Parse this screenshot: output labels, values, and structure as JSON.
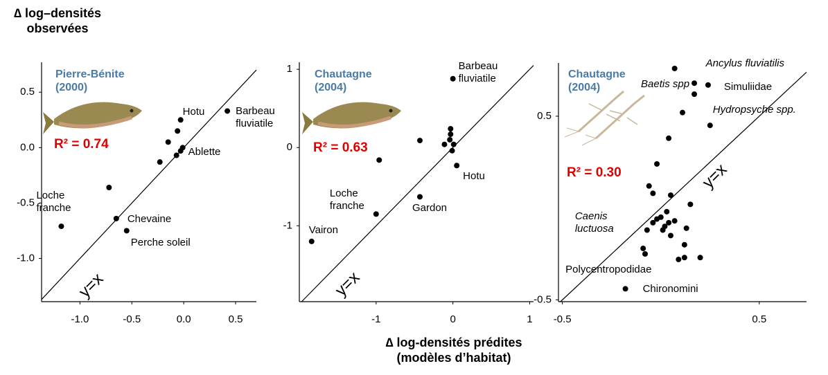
{
  "figure": {
    "ylabel": "∆ log–densités\nobservées",
    "xlabel": "∆ log-densités prédites\n(modèles d’habitat)"
  },
  "chart_data": [
    {
      "type": "scatter",
      "title": "Pierre-Bénite\n(2000)",
      "annotation": "R² = 0.74",
      "reference_line_label": "y=x",
      "color": "#000000",
      "x": [
        0.42,
        -0.03,
        -0.06,
        -0.15,
        -0.01,
        -0.03,
        -0.07,
        -0.23,
        -0.72,
        -0.65,
        -0.55,
        -1.18
      ],
      "y": [
        0.33,
        0.25,
        0.15,
        0.05,
        0.0,
        -0.03,
        -0.07,
        -0.13,
        -0.36,
        -0.64,
        -0.75,
        -0.71
      ],
      "labels": [
        "Barbeau\nfluviatile",
        "Hotu",
        null,
        null,
        null,
        null,
        "Ablette",
        null,
        null,
        "Chevaine",
        "Perche soleil",
        "Loche\nfranche"
      ],
      "xlim": [
        -1.37,
        0.7
      ],
      "ylim": [
        -1.39,
        0.77
      ],
      "xticks": [
        {
          "value": -1,
          "label": "-1.0"
        },
        -0.5,
        {
          "value": 0,
          "label": "0.0"
        },
        0.5
      ],
      "yticks": [
        0.5,
        {
          "value": 0,
          "label": "0.0"
        },
        -0.5,
        {
          "value": -1,
          "label": "-1.0"
        }
      ]
    },
    {
      "type": "scatter",
      "title": "Chautagne\n(2004)",
      "annotation": "R² = 0.63",
      "reference_line_label": "y=x",
      "color": "#000000",
      "x": [
        0.0,
        -0.03,
        -0.03,
        -0.04,
        -0.11,
        0.01,
        -0.01,
        -0.43,
        -0.96,
        0.05,
        -0.43,
        -1.0,
        -1.84
      ],
      "y": [
        0.88,
        0.24,
        0.17,
        0.1,
        0.04,
        0.04,
        -0.04,
        0.09,
        -0.16,
        -0.23,
        -0.63,
        -0.85,
        -1.2
      ],
      "labels": [
        "Barbeau\nfluviatile",
        null,
        null,
        null,
        null,
        null,
        null,
        null,
        null,
        "Hotu",
        "Gardon",
        "Loche\nfranche",
        "Vairon"
      ],
      "xlim": [
        -2,
        1.05
      ],
      "ylim": [
        -1.97,
        1.09
      ],
      "xticks": [
        -1,
        0,
        1
      ],
      "yticks": [
        1,
        0,
        -1
      ]
    },
    {
      "type": "scatter",
      "title": "Chautagne\n(2004)",
      "annotation": "R² = 0.30",
      "reference_line_label": "y=x",
      "color": "#000000",
      "x": [
        0.07,
        0.24,
        0.17,
        0.17,
        0.11,
        0.25,
        0.04,
        -0.02,
        -0.06,
        -0.04,
        0.05,
        0.15,
        0.03,
        0.0,
        -0.02,
        -0.04,
        0.04,
        0.07,
        -0.07,
        0.01,
        0.02,
        0.13,
        0.05,
        -0.09,
        -0.08,
        0.12,
        0.09,
        0.12,
        0.2,
        -0.18
      ],
      "y": [
        0.76,
        0.67,
        0.68,
        0.62,
        0.52,
        0.45,
        0.38,
        0.24,
        0.12,
        0.08,
        0.07,
        0.02,
        -0.02,
        -0.05,
        -0.06,
        -0.08,
        -0.08,
        -0.07,
        -0.12,
        -0.12,
        -0.1,
        -0.11,
        -0.15,
        -0.22,
        -0.25,
        -0.2,
        -0.28,
        -0.27,
        -0.27,
        -0.44
      ],
      "labels": [
        "Ancylus fluviatilis",
        "Simuliidae",
        "Baetis spp",
        null,
        null,
        "Hydropsyche spp.",
        null,
        null,
        null,
        null,
        null,
        null,
        null,
        null,
        null,
        null,
        null,
        null,
        "Caenis\nluctuosa",
        null,
        null,
        null,
        null,
        "Polycentropodidae",
        null,
        null,
        null,
        null,
        null,
        "Chironomini"
      ],
      "xlim": [
        -0.52,
        0.74
      ],
      "ylim": [
        -0.51,
        0.79
      ],
      "xticks": [
        -0.5,
        0.5
      ],
      "yticks": [
        0.5,
        -0.5
      ]
    }
  ]
}
